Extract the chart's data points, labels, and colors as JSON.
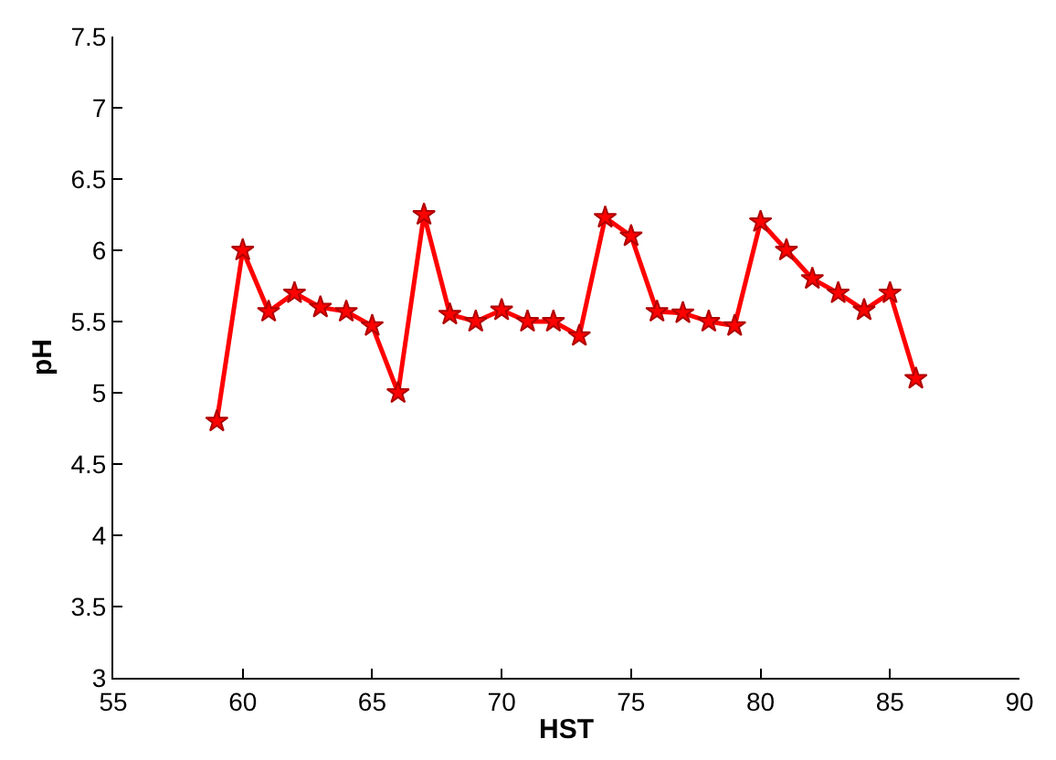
{
  "chart_data": {
    "type": "line",
    "xlabel": "HST",
    "ylabel": "pH",
    "x": [
      59,
      60,
      61,
      62,
      63,
      64,
      65,
      66,
      67,
      68,
      69,
      70,
      71,
      72,
      73,
      74,
      75,
      76,
      77,
      78,
      79,
      80,
      81,
      82,
      83,
      84,
      85,
      86
    ],
    "series": [
      {
        "color": "#ff0000",
        "values": [
          4.8,
          6.0,
          5.57,
          5.7,
          5.6,
          5.57,
          5.47,
          5.0,
          6.25,
          5.55,
          5.5,
          5.58,
          5.5,
          5.5,
          5.4,
          6.23,
          6.1,
          5.57,
          5.56,
          5.5,
          5.47,
          6.2,
          6.0,
          5.8,
          5.7,
          5.58,
          5.7,
          5.1
        ]
      }
    ],
    "xlim": [
      55,
      90
    ],
    "xticks": [
      55,
      60,
      65,
      70,
      75,
      80,
      85,
      90
    ],
    "ylim": [
      3,
      7.5
    ],
    "yticks": [
      3,
      3.5,
      4,
      4.5,
      5,
      5.5,
      6,
      6.5,
      7,
      7.5
    ],
    "marker": "star",
    "line_style": "solid"
  }
}
